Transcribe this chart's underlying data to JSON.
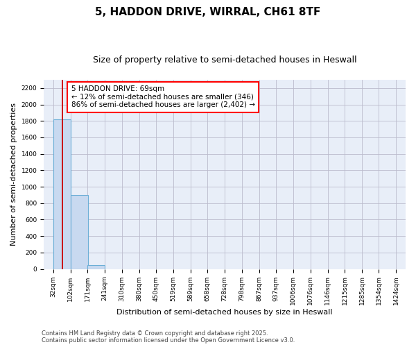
{
  "title": "5, HADDON DRIVE, WIRRAL, CH61 8TF",
  "subtitle": "Size of property relative to semi-detached houses in Heswall",
  "xlabel": "Distribution of semi-detached houses by size in Heswall",
  "ylabel": "Number of semi-detached properties",
  "footnote1": "Contains HM Land Registry data © Crown copyright and database right 2025.",
  "footnote2": "Contains public sector information licensed under the Open Government Licence v3.0.",
  "annotation_title": "5 HADDON DRIVE: 69sqm",
  "annotation_line1": "← 12% of semi-detached houses are smaller (346)",
  "annotation_line2": "86% of semi-detached houses are larger (2,402) →",
  "property_size": 69,
  "bin_edges": [
    32,
    102,
    171,
    241,
    310,
    380,
    450,
    519,
    589,
    658,
    728,
    798,
    867,
    937,
    1006,
    1076,
    1146,
    1215,
    1285,
    1354,
    1424
  ],
  "bin_labels": [
    "32sqm",
    "102sqm",
    "171sqm",
    "241sqm",
    "310sqm",
    "380sqm",
    "450sqm",
    "519sqm",
    "589sqm",
    "658sqm",
    "728sqm",
    "798sqm",
    "867sqm",
    "937sqm",
    "1006sqm",
    "1076sqm",
    "1146sqm",
    "1215sqm",
    "1285sqm",
    "1354sqm",
    "1424sqm"
  ],
  "bar_heights": [
    1820,
    900,
    50,
    0,
    0,
    0,
    0,
    0,
    0,
    0,
    0,
    0,
    0,
    0,
    0,
    0,
    0,
    0,
    0,
    0
  ],
  "bar_color": "#c8d9f0",
  "bar_edge_color": "#6baed6",
  "red_line_color": "#cc0000",
  "ylim": [
    0,
    2300
  ],
  "yticks": [
    0,
    200,
    400,
    600,
    800,
    1000,
    1200,
    1400,
    1600,
    1800,
    2000,
    2200
  ],
  "grid_color": "#bbbbcc",
  "bg_color": "#e8eef8",
  "title_fontsize": 11,
  "subtitle_fontsize": 9,
  "annot_fontsize": 7.5,
  "tick_fontsize": 6.5,
  "ylabel_fontsize": 8,
  "xlabel_fontsize": 8,
  "footnote_fontsize": 6
}
